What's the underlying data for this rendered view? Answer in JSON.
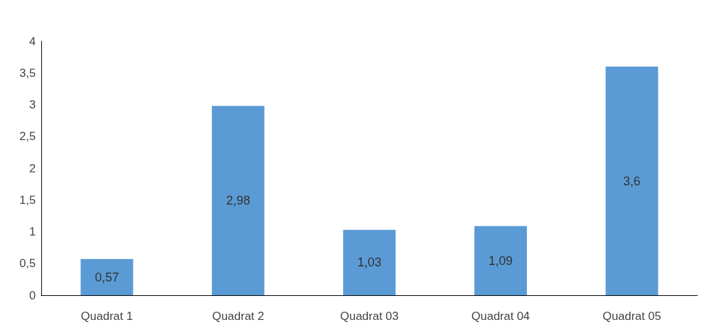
{
  "chart_data": {
    "type": "bar",
    "categories": [
      "Quadrat 1",
      "Quadrat 2",
      "Quadrat 03",
      "Quadrat 04",
      "Quadrat 05"
    ],
    "values": [
      0.57,
      2.98,
      1.03,
      1.09,
      3.6
    ],
    "value_labels": [
      "0,57",
      "2,98",
      "1,03",
      "1,09",
      "3,6"
    ],
    "color": "#5b9bd5",
    "ylim": [
      0,
      4
    ],
    "yticks": [
      0,
      {
        "value": 0.5,
        "label": "0,5"
      },
      1,
      {
        "value": 1.5,
        "label": "1,5"
      },
      2,
      {
        "value": 2.5,
        "label": "2,5"
      },
      3,
      {
        "value": 3.5,
        "label": "3,5"
      },
      4
    ],
    "grid": false
  }
}
